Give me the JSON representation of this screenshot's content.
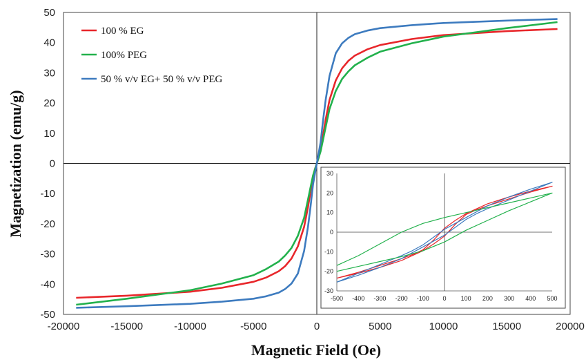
{
  "chart_data": [
    {
      "type": "line",
      "title": "",
      "xlabel": "Magnetic Field (Oe)",
      "ylabel": "Magnetization (emu/g)",
      "xlim": [
        -20000,
        20000
      ],
      "ylim": [
        -50,
        50
      ],
      "xticks": [
        "-20000",
        "-15000",
        "-10000",
        "-5000",
        "0",
        "5000",
        "10000",
        "15000",
        "20000"
      ],
      "yticks": [
        "50",
        "40",
        "30",
        "20",
        "10",
        "0",
        "-10",
        "-20",
        "-30",
        "-40",
        "-50"
      ],
      "grid": false,
      "legend_position": "top-left",
      "series": [
        {
          "name": "100 % EG",
          "color": "#e8262a",
          "x": [
            -19000,
            -15000,
            -10000,
            -7500,
            -5000,
            -4000,
            -3000,
            -2500,
            -2000,
            -1500,
            -1000,
            -700,
            -500,
            -300,
            -150,
            0,
            150,
            300,
            500,
            700,
            1000,
            1500,
            2000,
            2500,
            3000,
            4000,
            5000,
            7500,
            10000,
            15000,
            19000
          ],
          "y": [
            -44.5,
            -43.8,
            -42.5,
            -41.2,
            -39.2,
            -37.8,
            -35.7,
            -34.0,
            -31.5,
            -27.5,
            -21.0,
            -14.5,
            -9.5,
            -4.5,
            -2.0,
            0,
            2.0,
            4.5,
            9.5,
            14.5,
            21.0,
            27.5,
            31.5,
            34.0,
            35.7,
            37.8,
            39.2,
            41.2,
            42.5,
            43.8,
            44.5
          ]
        },
        {
          "name": "100% PEG",
          "color": "#22b14c",
          "x": [
            -19000,
            -15000,
            -10000,
            -7500,
            -5000,
            -4000,
            -3000,
            -2500,
            -2000,
            -1500,
            -1000,
            -700,
            -500,
            -300,
            -150,
            0,
            150,
            300,
            500,
            700,
            1000,
            1500,
            2000,
            2500,
            3000,
            4000,
            5000,
            7500,
            10000,
            15000,
            19000
          ],
          "y": [
            -46.8,
            -44.8,
            -42.0,
            -39.8,
            -37.0,
            -35.0,
            -32.5,
            -30.5,
            -28.0,
            -24.0,
            -18.0,
            -12.0,
            -8.0,
            -4.0,
            -2.0,
            0,
            2.0,
            4.0,
            8.0,
            12.0,
            18.0,
            24.0,
            28.0,
            30.5,
            32.5,
            35.0,
            37.0,
            39.8,
            42.0,
            44.8,
            46.8
          ]
        },
        {
          "name": "50 % v/v EG+ 50 % v/v PEG",
          "color": "#3d7bbf",
          "x": [
            -19000,
            -15000,
            -10000,
            -7500,
            -5000,
            -4000,
            -3000,
            -2500,
            -2000,
            -1500,
            -1000,
            -700,
            -500,
            -300,
            -150,
            0,
            150,
            300,
            500,
            700,
            1000,
            1500,
            2000,
            2500,
            3000,
            4000,
            5000,
            7500,
            10000,
            15000,
            19000
          ],
          "y": [
            -47.8,
            -47.3,
            -46.5,
            -45.8,
            -44.8,
            -44.0,
            -42.8,
            -41.6,
            -39.8,
            -36.5,
            -29.0,
            -21.0,
            -14.5,
            -7.0,
            -3.5,
            0,
            3.5,
            7.0,
            14.5,
            21.0,
            29.0,
            36.5,
            39.8,
            41.6,
            42.8,
            44.0,
            44.8,
            45.8,
            46.5,
            47.3,
            47.8
          ]
        }
      ]
    },
    {
      "type": "line",
      "title": "",
      "xlim": [
        -500,
        500
      ],
      "ylim": [
        -30,
        30
      ],
      "xticks": [
        "-500",
        "-400",
        "-300",
        "-200",
        "-100",
        "0",
        "100",
        "200",
        "300",
        "400",
        "500"
      ],
      "yticks": [
        "30",
        "20",
        "10",
        "0",
        "-10",
        "-20",
        "-30"
      ],
      "grid": false,
      "series": [
        {
          "color": "#e8262a",
          "x": [
            -500,
            -400,
            -300,
            -200,
            -100,
            -50,
            0,
            50,
            100,
            150,
            200,
            300,
            400,
            500,
            400,
            300,
            200,
            100,
            50,
            0,
            -50,
            -100,
            -150,
            -200,
            -300,
            -400,
            -500
          ],
          "y": [
            -23.5,
            -21.0,
            -18.0,
            -14.5,
            -9.5,
            -6.0,
            -2.0,
            4.0,
            9.0,
            11.5,
            13.5,
            17.0,
            20.5,
            23.5,
            21.0,
            18.0,
            14.5,
            9.5,
            6.0,
            2.0,
            -4.0,
            -9.0,
            -11.5,
            -13.5,
            -17.0,
            -20.5,
            -23.5
          ]
        },
        {
          "color": "#3d7bbf",
          "x": [
            -500,
            -400,
            -300,
            -200,
            -100,
            0,
            100,
            150,
            200,
            300,
            400,
            500,
            400,
            300,
            200,
            100,
            0,
            -100,
            -150,
            -200,
            -300,
            -400,
            -500
          ],
          "y": [
            -25.5,
            -22.0,
            -18.0,
            -13.5,
            -7.5,
            -1.5,
            6.5,
            9.5,
            12.0,
            16.5,
            21.0,
            25.5,
            22.0,
            18.0,
            13.5,
            7.5,
            1.5,
            -6.5,
            -9.5,
            -12.0,
            -16.5,
            -21.0,
            -25.5
          ]
        },
        {
          "color": "#22b14c",
          "x": [
            -500,
            -400,
            -300,
            -200,
            -100,
            0,
            100,
            200,
            300,
            400,
            500,
            400,
            300,
            200,
            100,
            0,
            -100,
            -200,
            -300,
            -400,
            -500
          ],
          "y": [
            -17.0,
            -12.0,
            -6.0,
            0.0,
            4.5,
            7.5,
            10.0,
            12.5,
            15.0,
            17.5,
            20.0,
            15.5,
            11.0,
            6.0,
            1.0,
            -5.0,
            -9.5,
            -12.5,
            -15.0,
            -17.5,
            -20.0
          ]
        }
      ]
    }
  ]
}
